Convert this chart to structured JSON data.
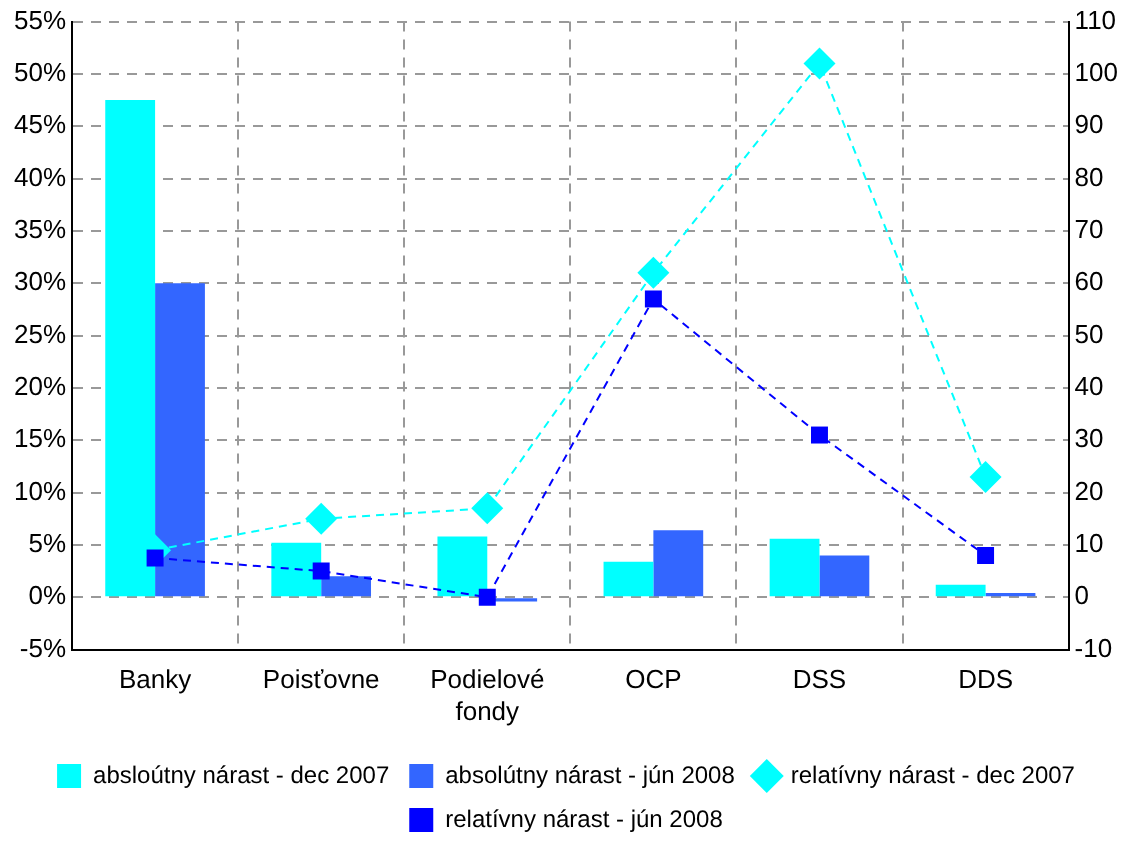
{
  "chart_data": {
    "type": "bar",
    "categories": [
      "Banky",
      "Poisťovne",
      "Podielové fondy",
      "OCP",
      "DSS",
      "DDS"
    ],
    "series": [
      {
        "name": "absloútny nárast - dec 2007",
        "color": "#00ffff",
        "values": [
          47.5,
          5.2,
          5.8,
          3.4,
          5.6,
          1.2
        ]
      },
      {
        "name": "absolútny nárast - jún 2008",
        "color": "#3366ff",
        "values": [
          30,
          2,
          -0.4,
          6.4,
          4,
          0.4
        ]
      },
      {
        "name": "relatívny nárast - dec 2007",
        "type": "line",
        "axis": "y2",
        "color": "#00ffff",
        "marker": "diamond",
        "line_style": "dashed",
        "values": [
          9,
          15,
          17,
          62,
          102,
          23
        ]
      },
      {
        "name": "relatívny nárast - jún 2008",
        "type": "line",
        "axis": "y2",
        "color": "#0000ff",
        "marker": "square",
        "line_style": "dashed",
        "values": [
          7.5,
          5,
          0,
          57,
          31,
          8
        ]
      }
    ],
    "ylim": [
      -5,
      55
    ],
    "yticks": [
      {
        "value": -5,
        "label": "-5%"
      },
      {
        "value": 0,
        "label": "0%"
      },
      {
        "value": 5,
        "label": "5%"
      },
      {
        "value": 10,
        "label": "10%"
      },
      {
        "value": 15,
        "label": "15%"
      },
      {
        "value": 20,
        "label": "20%"
      },
      {
        "value": 25,
        "label": "25%"
      },
      {
        "value": 30,
        "label": "30%"
      },
      {
        "value": 35,
        "label": "35%"
      },
      {
        "value": 40,
        "label": "40%"
      },
      {
        "value": 45,
        "label": "45%"
      },
      {
        "value": 50,
        "label": "50%"
      },
      {
        "value": 55,
        "label": "55%"
      }
    ],
    "y2lim": [
      -10,
      110
    ],
    "y2ticks": [
      -10,
      0,
      10,
      20,
      30,
      40,
      50,
      60,
      70,
      80,
      90,
      100,
      110
    ],
    "grid": true,
    "legend": "bottom"
  }
}
